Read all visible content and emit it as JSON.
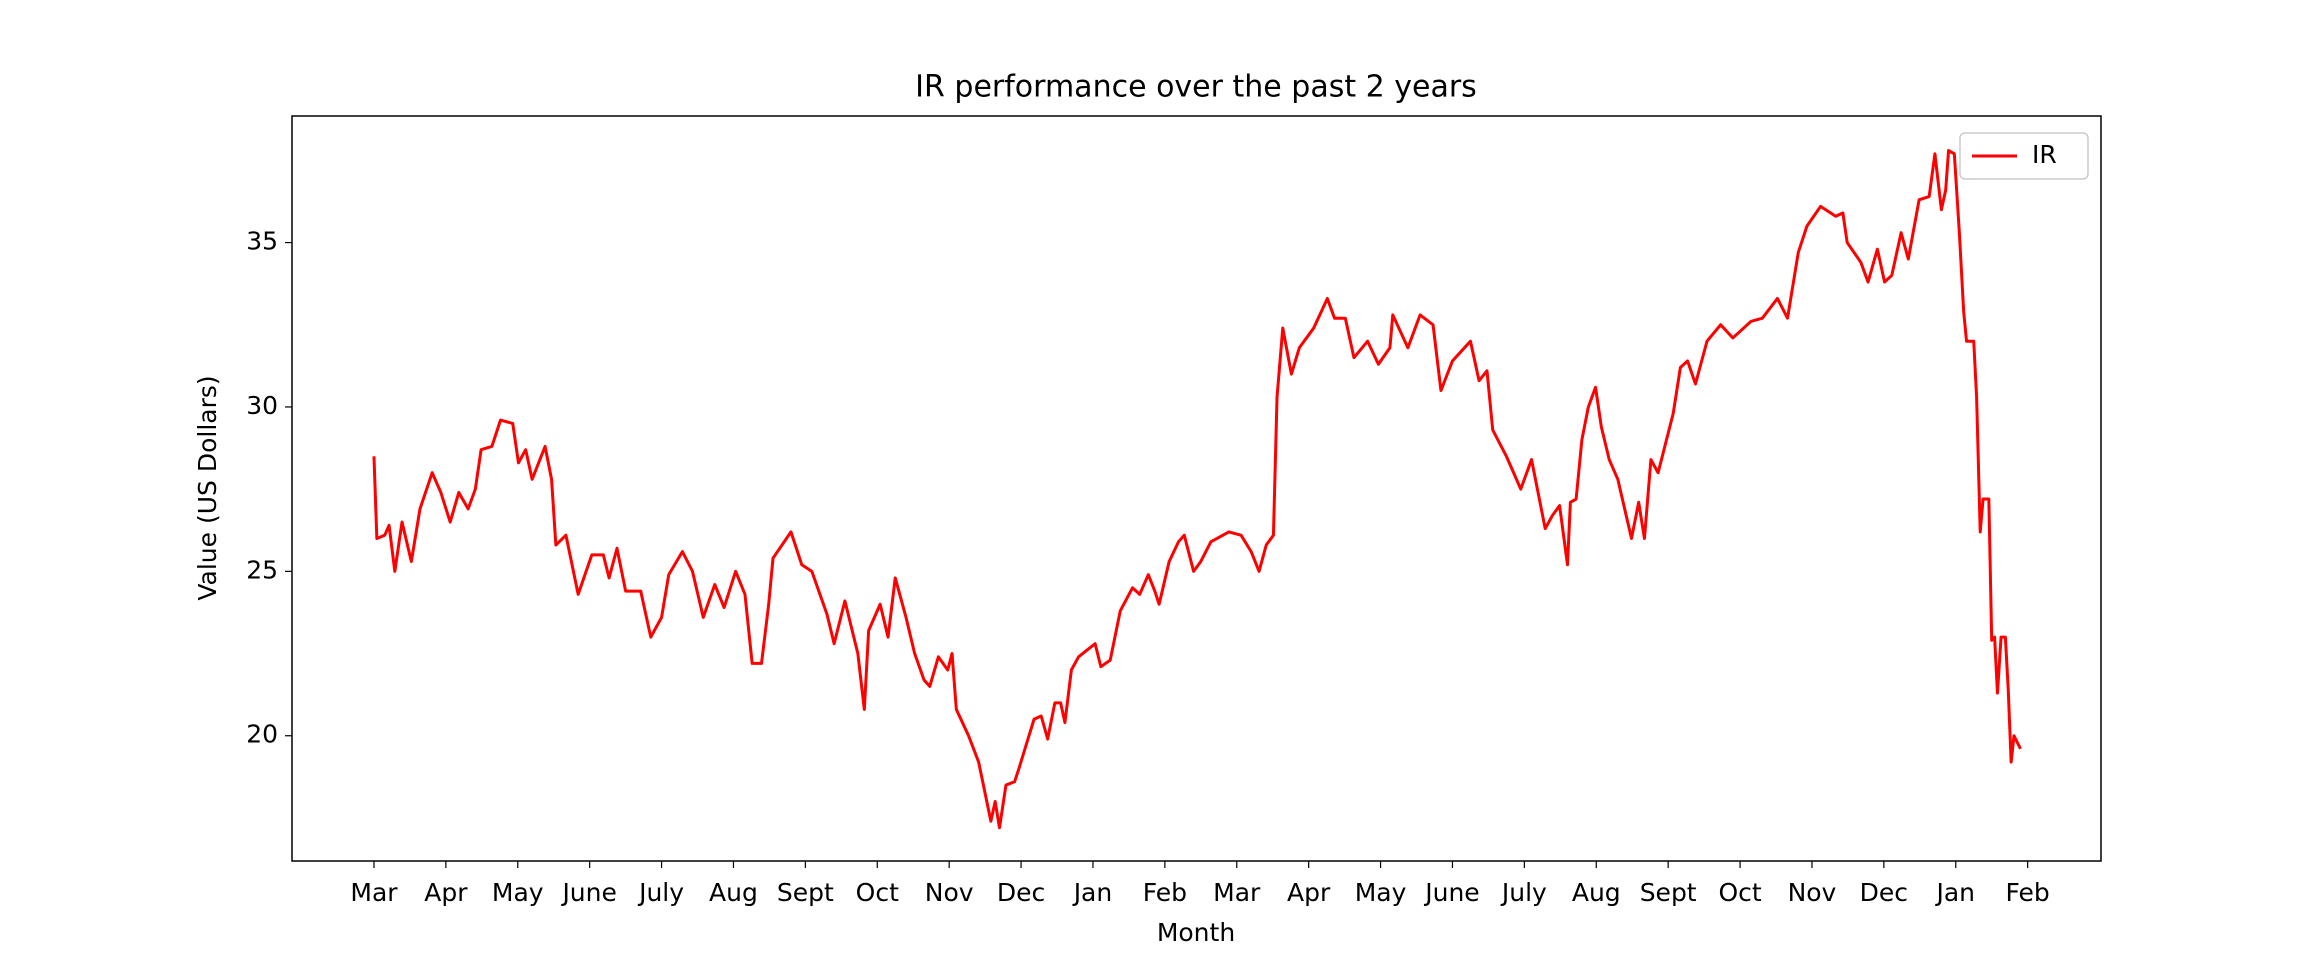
{
  "chart_data": {
    "type": "line",
    "title": "IR performance over the past 2 years",
    "x_label": "Month",
    "y_label": "Value (US Dollars)",
    "legend": "upper right",
    "xlim": [
      -1.14,
      24.02
    ],
    "ylim": [
      16.19,
      38.85
    ],
    "xticks": [
      {
        "value": 0,
        "label": "Mar"
      },
      {
        "value": 1,
        "label": "Apr"
      },
      {
        "value": 2,
        "label": "May"
      },
      {
        "value": 3,
        "label": "June"
      },
      {
        "value": 4,
        "label": "July"
      },
      {
        "value": 5,
        "label": "Aug"
      },
      {
        "value": 6,
        "label": "Sept"
      },
      {
        "value": 7,
        "label": "Oct"
      },
      {
        "value": 8,
        "label": "Nov"
      },
      {
        "value": 9,
        "label": "Dec"
      },
      {
        "value": 10,
        "label": "Jan"
      },
      {
        "value": 11,
        "label": "Feb"
      },
      {
        "value": 12,
        "label": "Mar"
      },
      {
        "value": 13,
        "label": "Apr"
      },
      {
        "value": 14,
        "label": "May"
      },
      {
        "value": 15,
        "label": "June"
      },
      {
        "value": 16,
        "label": "July"
      },
      {
        "value": 17,
        "label": "Aug"
      },
      {
        "value": 18,
        "label": "Sept"
      },
      {
        "value": 19,
        "label": "Oct"
      },
      {
        "value": 20,
        "label": "Nov"
      },
      {
        "value": 21,
        "label": "Dec"
      },
      {
        "value": 22,
        "label": "Jan"
      },
      {
        "value": 23,
        "label": "Feb"
      }
    ],
    "yticks": [
      20,
      25,
      30,
      35
    ],
    "x": [
      0,
      0.04,
      0.15,
      0.21,
      0.29,
      0.39,
      0.52,
      0.64,
      0.81,
      0.93,
      1.06,
      1.18,
      1.31,
      1.41,
      1.49,
      1.64,
      1.76,
      1.93,
      2.01,
      2.11,
      2.2,
      2.38,
      2.47,
      2.53,
      2.67,
      2.84,
      3.03,
      3.19,
      3.27,
      3.38,
      3.5,
      3.71,
      3.85,
      4.0,
      4.1,
      4.29,
      4.43,
      4.58,
      4.74,
      4.87,
      5.03,
      5.16,
      5.26,
      5.39,
      5.49,
      5.55,
      5.8,
      5.95,
      6.09,
      6.3,
      6.4,
      6.55,
      6.73,
      6.82,
      6.88,
      7.04,
      7.15,
      7.25,
      7.4,
      7.52,
      7.65,
      7.73,
      7.85,
      7.98,
      8.04,
      8.1,
      8.27,
      8.41,
      8.58,
      8.64,
      8.7,
      8.79,
      8.91,
      8.97,
      9.18,
      9.28,
      9.37,
      9.47,
      9.55,
      9.61,
      9.7,
      9.8,
      10.03,
      10.11,
      10.24,
      10.38,
      10.55,
      10.65,
      10.77,
      10.86,
      10.92,
      11.06,
      11.19,
      11.27,
      11.4,
      11.5,
      11.64,
      11.89,
      12.06,
      12.2,
      12.31,
      12.41,
      12.51,
      12.56,
      12.64,
      12.76,
      12.87,
      13.07,
      13.26,
      13.36,
      13.51,
      13.63,
      13.82,
      13.97,
      14.13,
      14.17,
      14.38,
      14.55,
      14.73,
      14.84,
      15.0,
      15.25,
      15.37,
      15.48,
      15.56,
      15.75,
      15.95,
      16.1,
      16.29,
      16.39,
      16.49,
      16.6,
      16.64,
      16.72,
      16.8,
      16.89,
      16.99,
      17.07,
      17.18,
      17.3,
      17.49,
      17.59,
      17.67,
      17.76,
      17.86,
      18.07,
      18.17,
      18.27,
      18.38,
      18.54,
      18.73,
      18.9,
      19.15,
      19.31,
      19.52,
      19.66,
      19.81,
      19.93,
      20.12,
      20.33,
      20.43,
      20.49,
      20.68,
      20.78,
      20.91,
      21.01,
      21.11,
      21.24,
      21.34,
      21.49,
      21.63,
      21.71,
      21.8,
      21.86,
      21.9,
      21.98,
      22.05,
      22.11,
      22.15,
      22.25,
      22.29,
      22.34,
      22.38,
      22.46,
      22.5,
      22.54,
      22.58,
      22.63,
      22.69,
      22.73,
      22.77,
      22.81,
      22.9
    ],
    "series": [
      {
        "name": "IR",
        "color": "#ff0000",
        "values": [
          28.5,
          26.0,
          26.1,
          26.4,
          25.0,
          26.5,
          25.3,
          26.9,
          28.0,
          27.4,
          26.5,
          27.4,
          26.9,
          27.5,
          28.7,
          28.8,
          29.6,
          29.5,
          28.3,
          28.7,
          27.8,
          28.8,
          27.8,
          25.8,
          26.1,
          24.3,
          25.5,
          25.5,
          24.8,
          25.7,
          24.4,
          24.4,
          23.0,
          23.6,
          24.9,
          25.6,
          25.0,
          23.6,
          24.6,
          23.9,
          25.0,
          24.3,
          22.2,
          22.2,
          24.0,
          25.4,
          26.2,
          25.2,
          25.0,
          23.7,
          22.8,
          24.1,
          22.5,
          20.8,
          23.2,
          24.0,
          23.0,
          24.8,
          23.6,
          22.5,
          21.7,
          21.5,
          22.4,
          22.0,
          22.5,
          20.8,
          20.0,
          19.2,
          17.4,
          18.0,
          17.2,
          18.5,
          18.6,
          19.0,
          20.5,
          20.6,
          19.9,
          21.0,
          21.0,
          20.4,
          22.0,
          22.4,
          22.8,
          22.1,
          22.3,
          23.8,
          24.5,
          24.3,
          24.9,
          24.4,
          24.0,
          25.3,
          25.9,
          26.1,
          25.0,
          25.3,
          25.9,
          26.2,
          26.1,
          25.6,
          25.0,
          25.8,
          26.1,
          30.3,
          32.4,
          31.0,
          31.8,
          32.4,
          33.3,
          32.7,
          32.7,
          31.5,
          32.0,
          31.3,
          31.8,
          32.8,
          31.8,
          32.8,
          32.5,
          30.5,
          31.4,
          32.0,
          30.8,
          31.1,
          29.3,
          28.5,
          27.5,
          28.4,
          26.3,
          26.7,
          27.0,
          25.2,
          27.1,
          27.2,
          29.0,
          30.0,
          30.6,
          29.4,
          28.4,
          27.8,
          26.0,
          27.1,
          26.0,
          28.4,
          28.0,
          29.8,
          31.2,
          31.4,
          30.7,
          32.0,
          32.5,
          32.1,
          32.6,
          32.7,
          33.3,
          32.7,
          34.7,
          35.5,
          36.1,
          35.8,
          35.9,
          35.0,
          34.4,
          33.8,
          34.8,
          33.8,
          34.0,
          35.3,
          34.5,
          36.3,
          36.4,
          37.7,
          36.0,
          36.6,
          37.8,
          37.7,
          35.3,
          32.9,
          32.0,
          32.0,
          30.3,
          26.2,
          27.2,
          27.2,
          22.9,
          23.0,
          21.3,
          23.0,
          23.0,
          21.4,
          19.2,
          20.0,
          19.6
        ]
      }
    ]
  }
}
